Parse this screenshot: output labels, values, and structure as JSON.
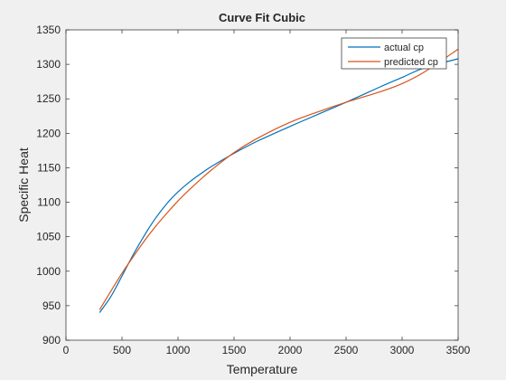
{
  "figure": {
    "background": "#f0f0f0"
  },
  "chart_data": {
    "type": "line",
    "title": "Curve Fit Cubic",
    "xlabel": "Temperature",
    "ylabel": "Specific Heat",
    "xlim": [
      0,
      3500
    ],
    "ylim": [
      900,
      1350
    ],
    "xticks": [
      0,
      500,
      1000,
      1500,
      2000,
      2500,
      3000,
      3500
    ],
    "yticks": [
      900,
      950,
      1000,
      1050,
      1100,
      1150,
      1200,
      1250,
      1300,
      1350
    ],
    "grid": false,
    "legend_position": "top-right",
    "series": [
      {
        "name": "actual cp",
        "color": "#0072bd",
        "x": [
          300,
          400,
          500,
          600,
          700,
          800,
          900,
          1000,
          1100,
          1200,
          1300,
          1500,
          1700,
          2000,
          2300,
          2500,
          2800,
          3000,
          3200,
          3500
        ],
        "y": [
          940,
          963,
          993,
          1024,
          1052,
          1077,
          1098,
          1115,
          1129,
          1141,
          1152,
          1171,
          1188,
          1210,
          1231,
          1245,
          1267,
          1281,
          1295,
          1308
        ]
      },
      {
        "name": "predicted cp",
        "color": "#d95319",
        "x": [
          300,
          400,
          500,
          600,
          700,
          800,
          900,
          1000,
          1100,
          1200,
          1300,
          1500,
          1700,
          2000,
          2300,
          2500,
          2800,
          3000,
          3200,
          3500
        ],
        "y": [
          944,
          971,
          997,
          1021,
          1044,
          1065,
          1084,
          1102,
          1118,
          1133,
          1147,
          1172,
          1192,
          1216,
          1234,
          1245,
          1260,
          1272,
          1289,
          1322
        ]
      }
    ]
  }
}
